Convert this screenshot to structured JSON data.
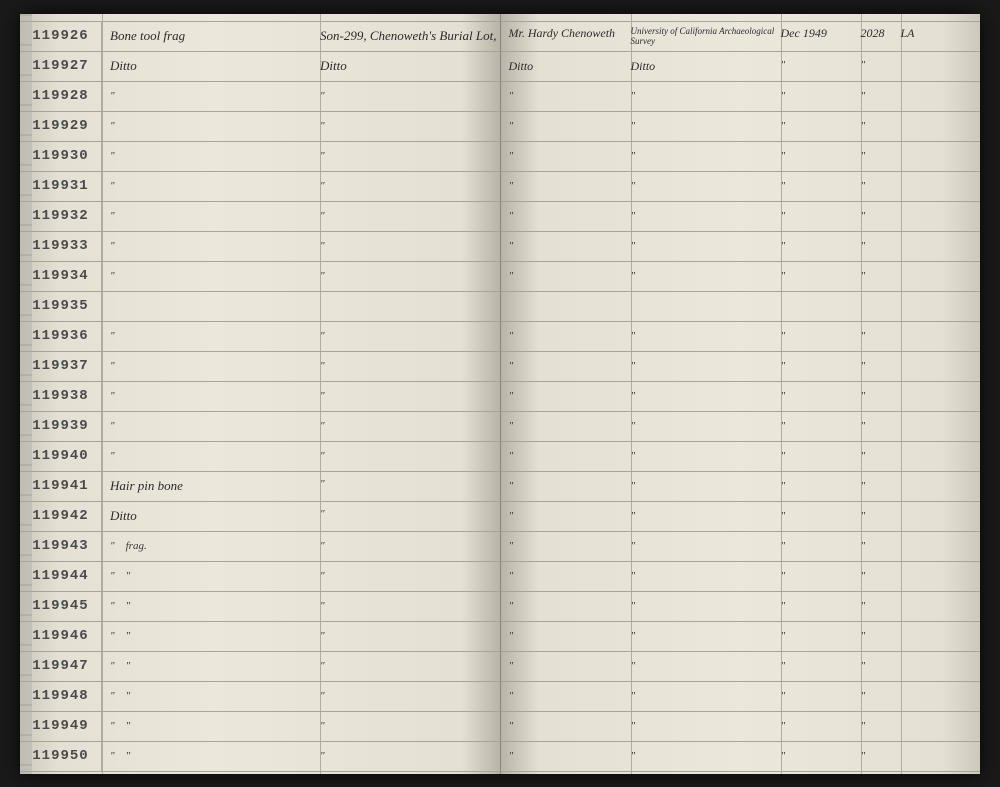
{
  "leftPage": {
    "rows": [
      {
        "id": "119926",
        "desc": "Bone tool frag",
        "loc": "Son-299, Chenoweth's Burial Lot,"
      },
      {
        "id": "119927",
        "desc": "Ditto",
        "loc": "Ditto"
      },
      {
        "id": "119928",
        "desc": "\"",
        "loc": "\""
      },
      {
        "id": "119929",
        "desc": "\"",
        "loc": "\""
      },
      {
        "id": "119930",
        "desc": "\"",
        "loc": "\""
      },
      {
        "id": "119931",
        "desc": "\"",
        "loc": "\""
      },
      {
        "id": "119932",
        "desc": "\"",
        "loc": "\""
      },
      {
        "id": "119933",
        "desc": "\"",
        "loc": "\""
      },
      {
        "id": "119934",
        "desc": "\"",
        "loc": "\""
      },
      {
        "id": "119935",
        "desc": "",
        "loc": ""
      },
      {
        "id": "119936",
        "desc": "\"",
        "loc": "\""
      },
      {
        "id": "119937",
        "desc": "\"",
        "loc": "\""
      },
      {
        "id": "119938",
        "desc": "\"",
        "loc": "\""
      },
      {
        "id": "119939",
        "desc": "\"",
        "loc": "\""
      },
      {
        "id": "119940",
        "desc": "\"",
        "loc": "\""
      },
      {
        "id": "119941",
        "desc": "Hair pin bone",
        "loc": "\""
      },
      {
        "id": "119942",
        "desc": "Ditto",
        "loc": "\""
      },
      {
        "id": "119943",
        "desc": "\"    frag.",
        "loc": "\""
      },
      {
        "id": "119944",
        "desc": "\"    \"",
        "loc": "\""
      },
      {
        "id": "119945",
        "desc": "\"    \"",
        "loc": "\""
      },
      {
        "id": "119946",
        "desc": "\"    \"",
        "loc": "\""
      },
      {
        "id": "119947",
        "desc": "\"    \"",
        "loc": "\""
      },
      {
        "id": "119948",
        "desc": "\"    \"",
        "loc": "\""
      },
      {
        "id": "119949",
        "desc": "\"    \"",
        "loc": "\""
      },
      {
        "id": "119950",
        "desc": "\"    \"",
        "loc": "\""
      }
    ]
  },
  "rightPage": {
    "rows": [
      {
        "c1": "Mr. Hardy Chenoweth",
        "c2": "University of California Archaeological Survey",
        "c3": "Dec 1949",
        "c4": "2028",
        "c5": "LA"
      },
      {
        "c1": "Ditto",
        "c2": "Ditto",
        "c3": "\"",
        "c4": "\"",
        "c5": ""
      },
      {
        "c1": "\"",
        "c2": "\"",
        "c3": "\"",
        "c4": "\"",
        "c5": ""
      },
      {
        "c1": "\"",
        "c2": "\"",
        "c3": "\"",
        "c4": "\"",
        "c5": ""
      },
      {
        "c1": "\"",
        "c2": "\"",
        "c3": "\"",
        "c4": "\"",
        "c5": ""
      },
      {
        "c1": "\"",
        "c2": "\"",
        "c3": "\"",
        "c4": "\"",
        "c5": ""
      },
      {
        "c1": "\"",
        "c2": "\"",
        "c3": "\"",
        "c4": "\"",
        "c5": ""
      },
      {
        "c1": "\"",
        "c2": "\"",
        "c3": "\"",
        "c4": "\"",
        "c5": ""
      },
      {
        "c1": "\"",
        "c2": "\"",
        "c3": "\"",
        "c4": "\"",
        "c5": ""
      },
      {
        "c1": "",
        "c2": "",
        "c3": "",
        "c4": "",
        "c5": ""
      },
      {
        "c1": "\"",
        "c2": "\"",
        "c3": "\"",
        "c4": "\"",
        "c5": ""
      },
      {
        "c1": "\"",
        "c2": "\"",
        "c3": "\"",
        "c4": "\"",
        "c5": ""
      },
      {
        "c1": "\"",
        "c2": "\"",
        "c3": "\"",
        "c4": "\"",
        "c5": ""
      },
      {
        "c1": "\"",
        "c2": "\"",
        "c3": "\"",
        "c4": "\"",
        "c5": ""
      },
      {
        "c1": "\"",
        "c2": "\"",
        "c3": "\"",
        "c4": "\"",
        "c5": ""
      },
      {
        "c1": "\"",
        "c2": "\"",
        "c3": "\"",
        "c4": "\"",
        "c5": ""
      },
      {
        "c1": "\"",
        "c2": "\"",
        "c3": "\"",
        "c4": "\"",
        "c5": ""
      },
      {
        "c1": "\"",
        "c2": "\"",
        "c3": "\"",
        "c4": "\"",
        "c5": ""
      },
      {
        "c1": "\"",
        "c2": "\"",
        "c3": "\"",
        "c4": "\"",
        "c5": ""
      },
      {
        "c1": "\"",
        "c2": "\"",
        "c3": "\"",
        "c4": "\"",
        "c5": ""
      },
      {
        "c1": "\"",
        "c2": "\"",
        "c3": "\"",
        "c4": "\"",
        "c5": ""
      },
      {
        "c1": "\"",
        "c2": "\"",
        "c3": "\"",
        "c4": "\"",
        "c5": ""
      },
      {
        "c1": "\"",
        "c2": "\"",
        "c3": "\"",
        "c4": "\"",
        "c5": ""
      },
      {
        "c1": "\"",
        "c2": "\"",
        "c3": "\"",
        "c4": "\"",
        "c5": ""
      },
      {
        "c1": "\"",
        "c2": "\"",
        "c3": "\"",
        "c4": "\"",
        "c5": ""
      }
    ]
  }
}
